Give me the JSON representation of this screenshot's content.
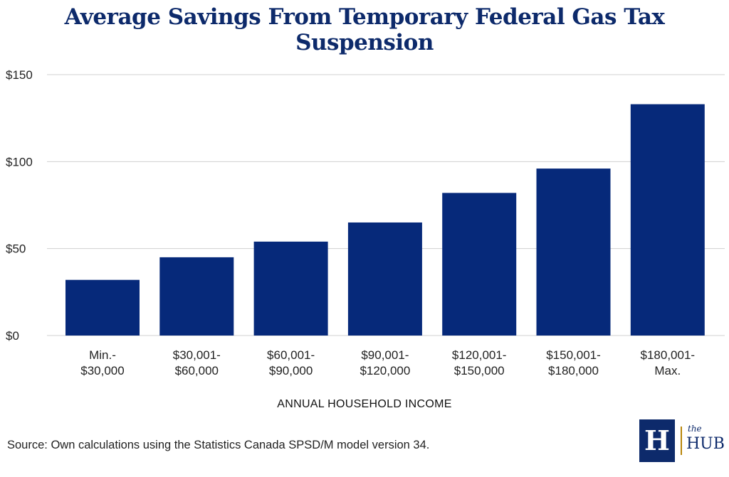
{
  "chart_data": {
    "type": "bar",
    "title": "Average Savings From Temporary Federal Gas Tax Suspension",
    "xlabel": "ANNUAL HOUSEHOLD INCOME",
    "ylabel": "",
    "ylim": [
      0,
      150
    ],
    "yticks": [
      0,
      50,
      100,
      150
    ],
    "ytick_labels": [
      "$0",
      "$50",
      "$100",
      "$150"
    ],
    "categories": [
      [
        "Min.-",
        "$30,000"
      ],
      [
        "$30,001-",
        "$60,000"
      ],
      [
        "$60,001-",
        "$90,000"
      ],
      [
        "$90,001-",
        "$120,000"
      ],
      [
        "$120,001-",
        "$150,000"
      ],
      [
        "$150,001-",
        "$180,000"
      ],
      [
        "$180,001-",
        "Max."
      ]
    ],
    "values": [
      32,
      45,
      54,
      65,
      82,
      96,
      133
    ],
    "grid": true,
    "bar_color": "#06297a"
  },
  "source": "Source: Own calculations using the Statistics Canada SPSD/M model version 34.",
  "logo": {
    "mark": "H",
    "small": "the",
    "big": "HUB"
  }
}
